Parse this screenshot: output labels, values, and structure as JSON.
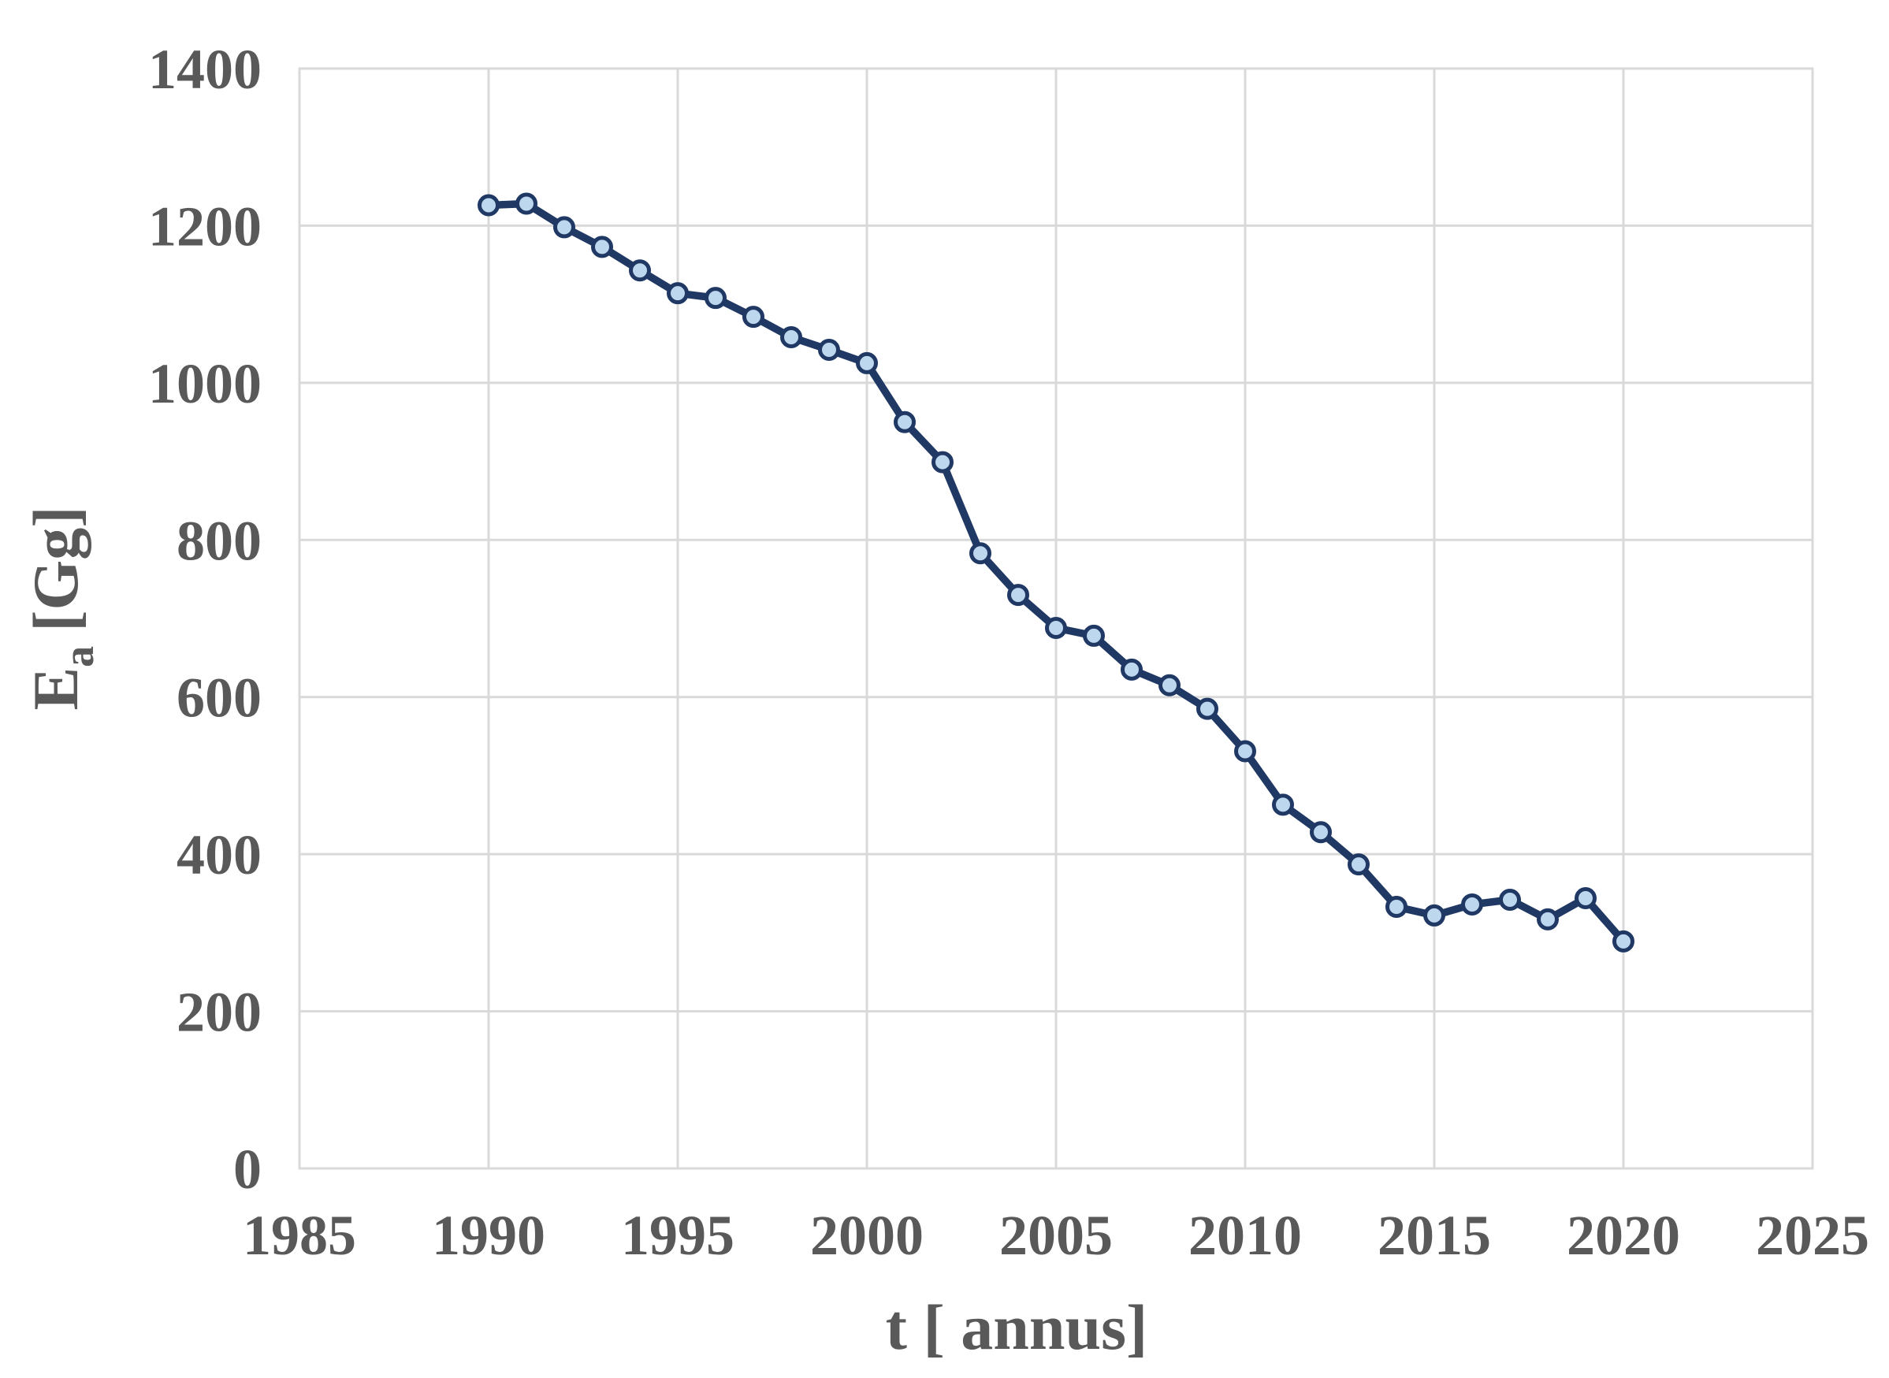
{
  "chart_data": {
    "type": "line",
    "title": "",
    "xlabel": "t [ annus]",
    "ylabel": {
      "main": "E",
      "sub": "a",
      "unit": "[Gg]"
    },
    "x": [
      1990,
      1991,
      1992,
      1993,
      1994,
      1995,
      1996,
      1997,
      1998,
      1999,
      2000,
      2001,
      2002,
      2003,
      2004,
      2005,
      2006,
      2007,
      2008,
      2009,
      2010,
      2011,
      2012,
      2013,
      2014,
      2015,
      2016,
      2017,
      2018,
      2019,
      2020
    ],
    "series": [
      {
        "name": "Ea",
        "values": [
          1226,
          1228,
          1198,
          1173,
          1143,
          1114,
          1108,
          1084,
          1058,
          1042,
          1025,
          950,
          899,
          783,
          730,
          688,
          678,
          635,
          615,
          585,
          531,
          463,
          428,
          387,
          333,
          322,
          336,
          342,
          317,
          344,
          289
        ]
      }
    ],
    "xlim": [
      1985,
      2025
    ],
    "ylim": [
      0,
      1400
    ],
    "x_ticks": [
      1985,
      1990,
      1995,
      2000,
      2005,
      2010,
      2015,
      2020,
      2025
    ],
    "y_ticks": [
      0,
      200,
      400,
      600,
      800,
      1000,
      1200,
      1400
    ],
    "grid": true,
    "legend": "none",
    "marker": "circle",
    "colors": {
      "line": "#1f3864",
      "marker_fill": "#bdd7ee",
      "marker_border": "#1f3864",
      "grid": "#d9d9d9",
      "text": "#595959",
      "background": "#ffffff"
    }
  }
}
